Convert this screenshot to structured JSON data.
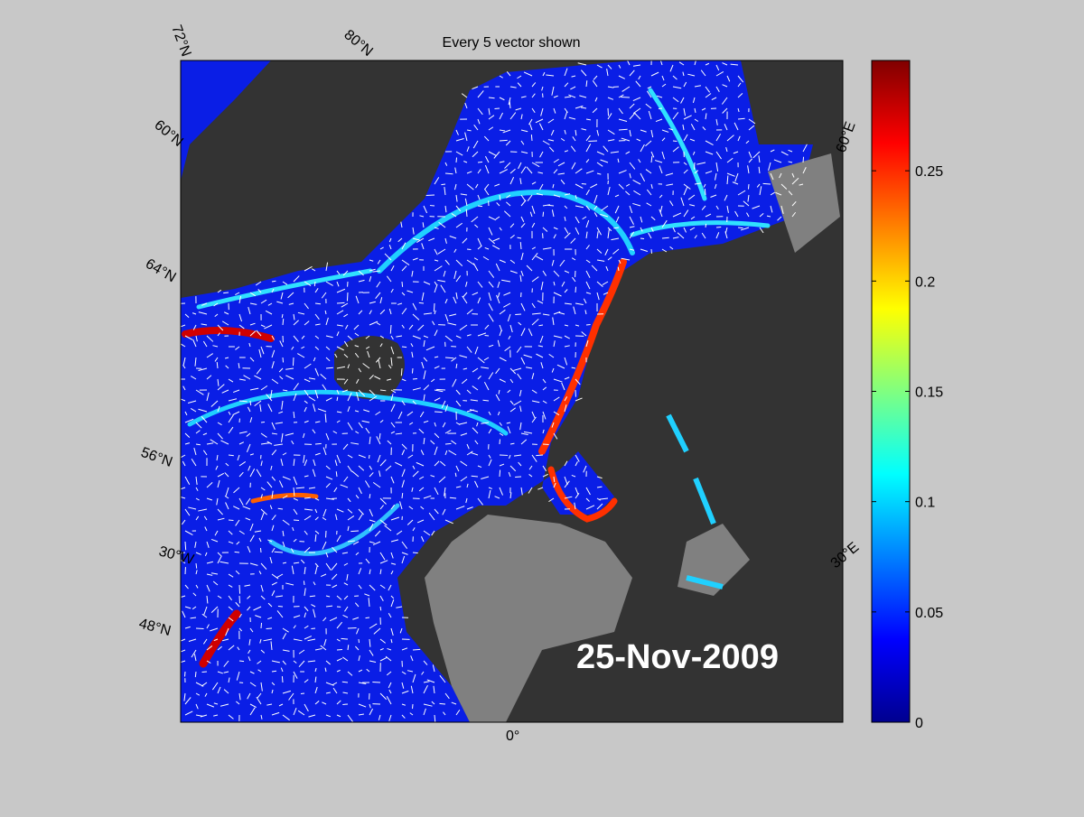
{
  "title": "Every 5 vector shown",
  "date": "25-Nov-2009",
  "map_labels": [
    "72°N",
    "80°N",
    "60°N",
    "64°N",
    "56°N",
    "30°W",
    "48°N",
    "0°",
    "30°E",
    "60°E"
  ],
  "colorbar": {
    "lim": [
      0,
      0.3
    ],
    "ticks": [
      0,
      0.05,
      0.1,
      0.15,
      0.2,
      0.25
    ],
    "colors": [
      "#00008f",
      "#0000ff",
      "#0080ff",
      "#00ffff",
      "#80ff80",
      "#ffff00",
      "#ff8000",
      "#ff0000",
      "#800000"
    ]
  }
}
